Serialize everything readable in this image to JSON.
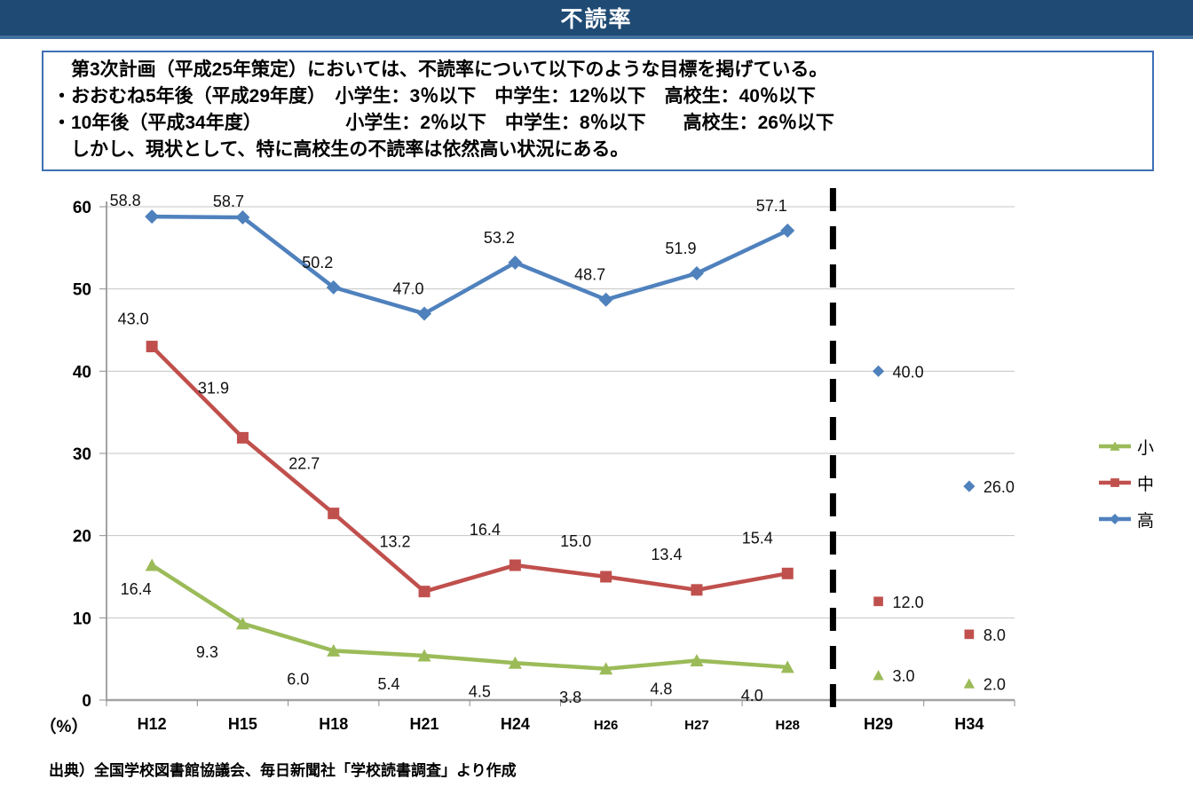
{
  "page": {
    "title": "不読率",
    "source": "出典）全国学校図書館協議会、毎日新聞社「学校読書調査」より作成"
  },
  "info_box": {
    "lines": [
      "　第3次計画（平成25年策定）においては、不読率について以下のような目標を掲げている。",
      "・おおむね5年後（平成29年度）　小学生：3％以下　中学生：12％以下　高校生：40％以下",
      "・10年後（平成34年度）　　　　　小学生：2％以下　中学生：8％以下　　高校生：26％以下",
      "　しかし、現状として、特に高校生の不読率は依然高い状況にある。"
    ]
  },
  "chart_data": {
    "type": "line",
    "title": "不読率",
    "categories": [
      "H12",
      "H15",
      "H18",
      "H21",
      "H24",
      "H26",
      "H27",
      "H28",
      "H29",
      "H34"
    ],
    "actual_categories": [
      "H12",
      "H15",
      "H18",
      "H21",
      "H24",
      "H26",
      "H27",
      "H28"
    ],
    "target_categories": [
      "H29",
      "H34"
    ],
    "unit_label": "（%）",
    "ylim": [
      0,
      60
    ],
    "yticks": [
      0,
      10,
      20,
      30,
      40,
      50,
      60
    ],
    "grid": true,
    "legend_position": "right",
    "divider": {
      "between": [
        "H28",
        "H29"
      ],
      "style": "thick-black-dashed"
    },
    "series": [
      {
        "name": "小",
        "color": "#9BBB59",
        "marker": "triangle",
        "values": [
          16.4,
          9.3,
          6.0,
          5.4,
          4.5,
          3.8,
          4.8,
          4.0
        ],
        "target_values": [
          3.0,
          2.0
        ]
      },
      {
        "name": "中",
        "color": "#C0504D",
        "marker": "square",
        "values": [
          43.0,
          31.9,
          22.7,
          13.2,
          16.4,
          15.0,
          13.4,
          15.4
        ],
        "target_values": [
          12.0,
          8.0
        ]
      },
      {
        "name": "高",
        "color": "#4F81BD",
        "marker": "diamond",
        "values": [
          58.8,
          58.7,
          50.2,
          47.0,
          53.2,
          48.7,
          51.9,
          57.1
        ],
        "target_values": [
          40.0,
          26.0
        ]
      }
    ]
  }
}
